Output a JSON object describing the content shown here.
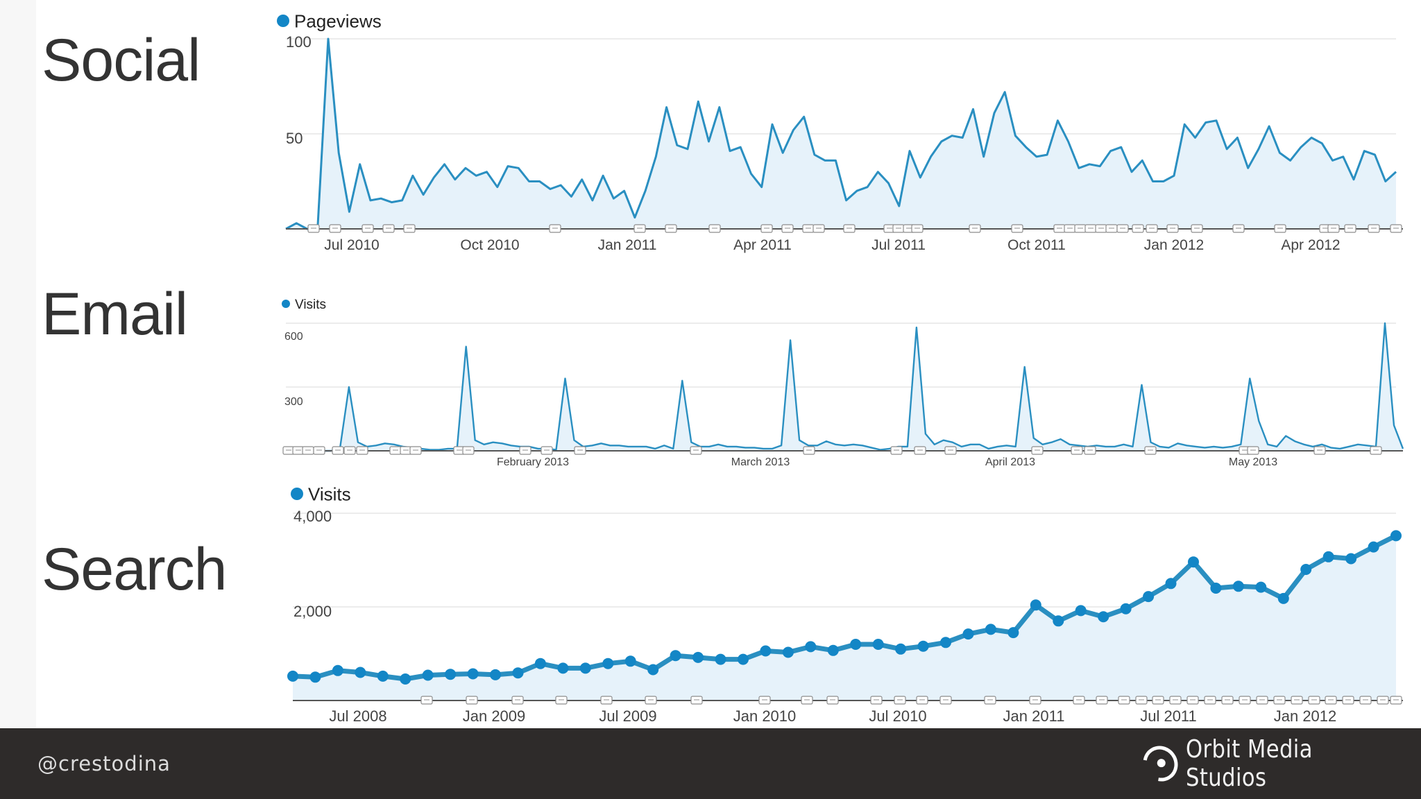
{
  "sections": {
    "social": "Social",
    "email": "Email",
    "search": "Search"
  },
  "footer": {
    "handle": "@crestodina",
    "brand": "Orbit Media Studios",
    "brand_icon": "orbit-logo-icon"
  },
  "colors": {
    "line": "#2a8fc1",
    "fill": "#e6f2fa",
    "grid": "#e6e6e6",
    "axis": "#555555",
    "footer_bg": "#2e2b2a"
  },
  "chart_data": [
    {
      "type": "area",
      "legend": "Pageviews",
      "ylim": [
        0,
        100
      ],
      "yticks": [
        "100",
        "50"
      ],
      "xticks": [
        "Jul 2010",
        "Oct 2010",
        "Jan 2011",
        "Apr 2011",
        "Jul 2011",
        "Oct 2011",
        "Jan 2012",
        "Apr 2012"
      ],
      "grid": true,
      "legend_position": "top-left",
      "values": [
        0,
        3,
        0,
        0,
        100,
        40,
        9,
        34,
        15,
        16,
        14,
        15,
        28,
        18,
        27,
        34,
        26,
        32,
        28,
        30,
        22,
        33,
        32,
        25,
        25,
        21,
        23,
        17,
        26,
        15,
        28,
        16,
        20,
        6,
        20,
        38,
        64,
        44,
        42,
        67,
        46,
        64,
        41,
        43,
        29,
        22,
        55,
        40,
        52,
        59,
        39,
        36,
        36,
        15,
        20,
        22,
        30,
        24,
        12,
        41,
        27,
        38,
        46,
        49,
        48,
        63,
        38,
        61,
        72,
        49,
        43,
        38,
        39,
        57,
        46,
        32,
        34,
        33,
        41,
        43,
        30,
        36,
        25,
        25,
        28,
        55,
        48,
        56,
        57,
        42,
        48,
        32,
        42,
        54,
        40,
        36,
        43,
        48,
        45,
        36,
        38,
        26,
        41,
        39,
        25,
        30
      ]
    },
    {
      "type": "area",
      "legend": "Visits",
      "ylim": [
        0,
        600
      ],
      "yticks": [
        "600",
        "300"
      ],
      "xticks": [
        "February 2013",
        "March 2013",
        "April 2013",
        "May 2013"
      ],
      "grid": true,
      "legend_position": "top-left",
      "values": [
        0,
        10,
        0,
        5,
        0,
        0,
        10,
        300,
        40,
        20,
        25,
        35,
        30,
        20,
        15,
        10,
        5,
        5,
        10,
        10,
        490,
        50,
        30,
        40,
        35,
        25,
        20,
        20,
        10,
        10,
        5,
        340,
        50,
        20,
        25,
        35,
        25,
        25,
        20,
        20,
        20,
        10,
        25,
        10,
        330,
        40,
        20,
        20,
        30,
        20,
        20,
        15,
        15,
        10,
        10,
        25,
        520,
        50,
        25,
        25,
        45,
        30,
        25,
        30,
        25,
        15,
        5,
        10,
        20,
        20,
        580,
        80,
        30,
        50,
        40,
        20,
        30,
        30,
        10,
        20,
        25,
        20,
        395,
        60,
        30,
        40,
        55,
        30,
        25,
        20,
        25,
        20,
        20,
        30,
        20,
        310,
        40,
        20,
        15,
        35,
        25,
        20,
        15,
        20,
        15,
        20,
        30,
        340,
        140,
        30,
        20,
        70,
        45,
        30,
        20,
        30,
        15,
        10,
        20,
        30,
        25,
        20,
        600,
        120,
        10
      ]
    },
    {
      "type": "line",
      "legend": "Visits",
      "ylim": [
        0,
        4000
      ],
      "yticks": [
        "4,000",
        "2,000"
      ],
      "xticks": [
        "Jul 2008",
        "Jan 2009",
        "Jul 2009",
        "Jan 2010",
        "Jul 2010",
        "Jan 2011",
        "Jul 2011",
        "Jan 2012"
      ],
      "grid": true,
      "legend_position": "top-left",
      "values": [
        520,
        500,
        640,
        600,
        520,
        460,
        540,
        560,
        570,
        550,
        590,
        790,
        690,
        690,
        790,
        840,
        660,
        960,
        920,
        880,
        880,
        1060,
        1030,
        1150,
        1070,
        1200,
        1200,
        1100,
        1160,
        1240,
        1420,
        1520,
        1450,
        2040,
        1700,
        1920,
        1790,
        1960,
        2220,
        2500,
        2960,
        2400,
        2440,
        2420,
        2180,
        2800,
        3070,
        3030,
        3280,
        3520
      ]
    }
  ]
}
